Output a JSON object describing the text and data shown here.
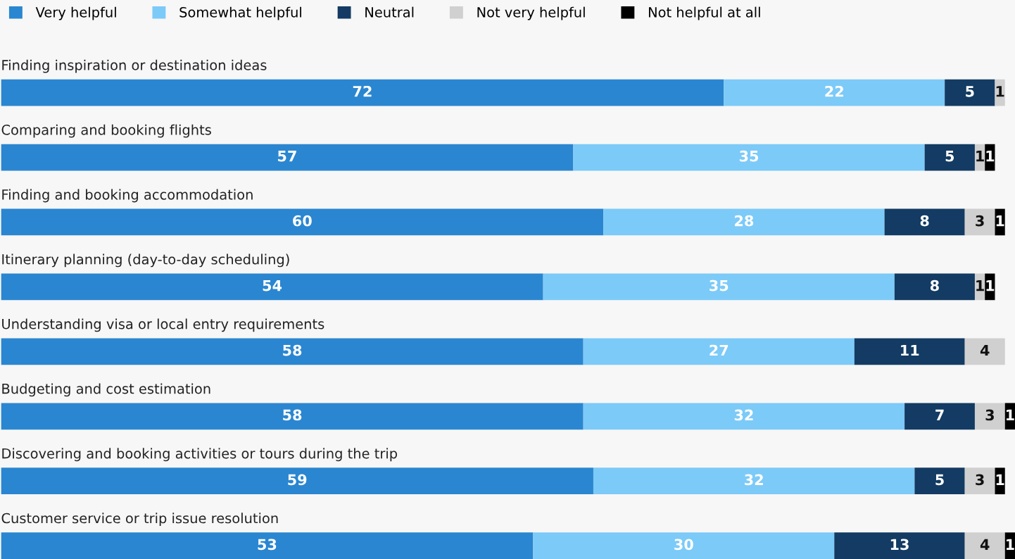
{
  "chart_data": {
    "type": "bar",
    "orientation": "horizontal",
    "stacked": true,
    "data_labels": true,
    "legend": "top left",
    "categories": [
      "Finding inspiration or destination ideas",
      "Comparing and booking flights",
      "Finding and booking accommodation",
      "Itinerary planning (day-to-day scheduling)",
      "Understanding visa or local entry requirements",
      "Budgeting and cost estimation",
      "Discovering and booking activities or tours during the trip",
      "Customer service or trip issue resolution"
    ],
    "series": [
      {
        "name": "Very helpful",
        "color": "#2a86d0",
        "values": [
          72,
          57,
          60,
          54,
          58,
          58,
          59,
          53
        ]
      },
      {
        "name": "Somewhat helpful",
        "color": "#7ccaf8",
        "values": [
          22,
          35,
          28,
          35,
          27,
          32,
          32,
          30
        ]
      },
      {
        "name": "Neutral",
        "color": "#133b63",
        "values": [
          5,
          5,
          8,
          8,
          11,
          7,
          5,
          13
        ]
      },
      {
        "name": "Not very helpful",
        "color": "#d0d0d0",
        "values": [
          1,
          1,
          3,
          1,
          4,
          3,
          3,
          4
        ]
      },
      {
        "name": "Not helpful at all",
        "color": "#000000",
        "values": [
          null,
          1,
          1,
          1,
          null,
          1,
          1,
          1
        ]
      }
    ]
  }
}
